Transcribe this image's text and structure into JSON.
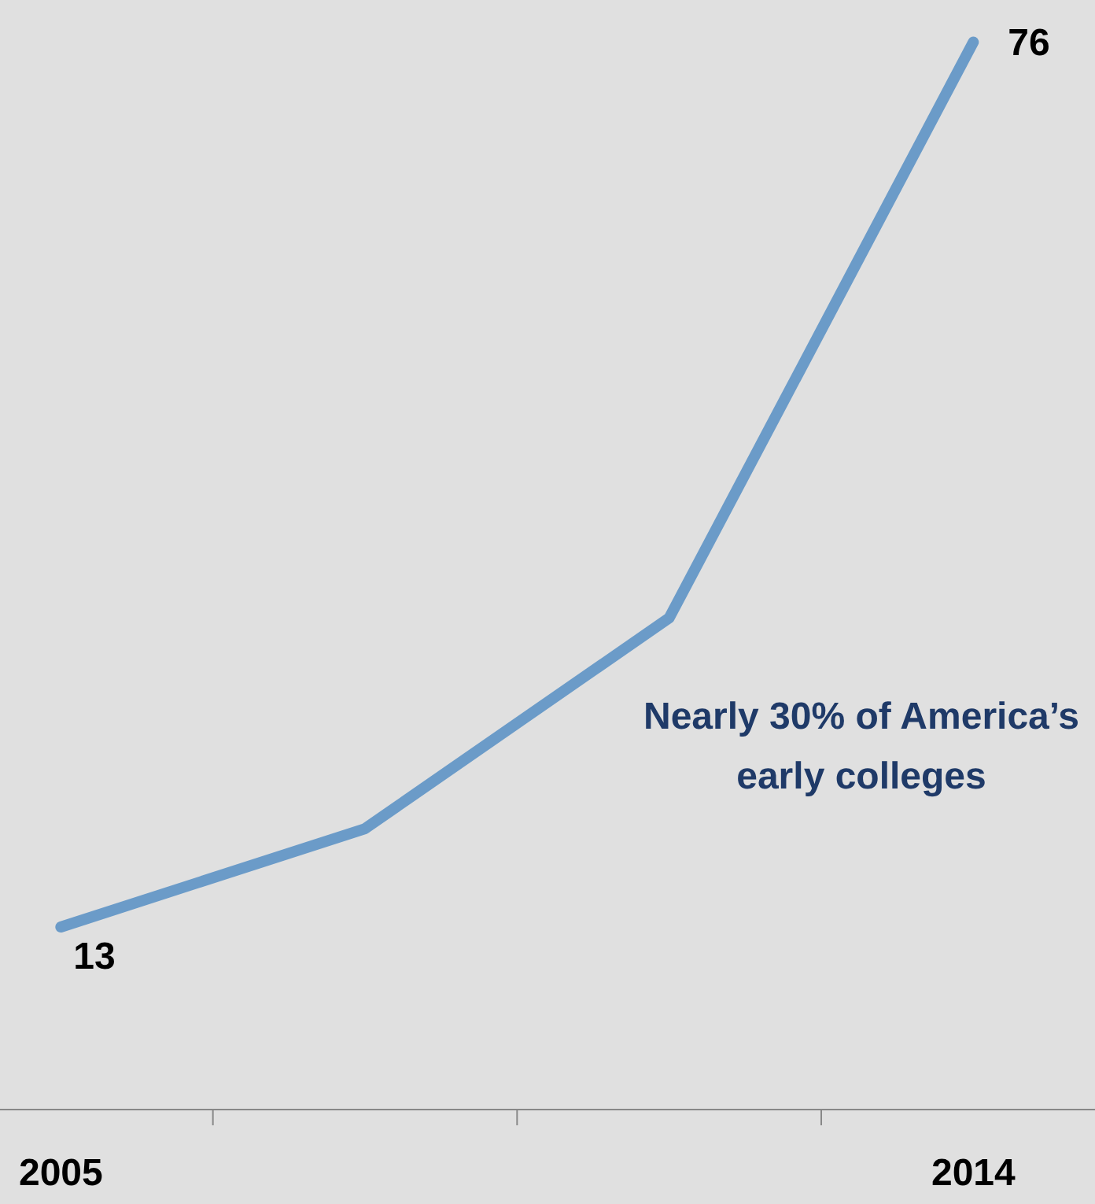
{
  "chart_data": {
    "type": "line",
    "categories": [
      "2005",
      null,
      null,
      "2014"
    ],
    "values": [
      13,
      20,
      35,
      76
    ],
    "color": "#6b9bc8",
    "value_labels": [
      "13",
      null,
      null,
      "76"
    ],
    "ylim": [
      0,
      79
    ],
    "tick_labels": "x",
    "annotations": [
      "Nearly 30% of America’s early colleges"
    ]
  }
}
